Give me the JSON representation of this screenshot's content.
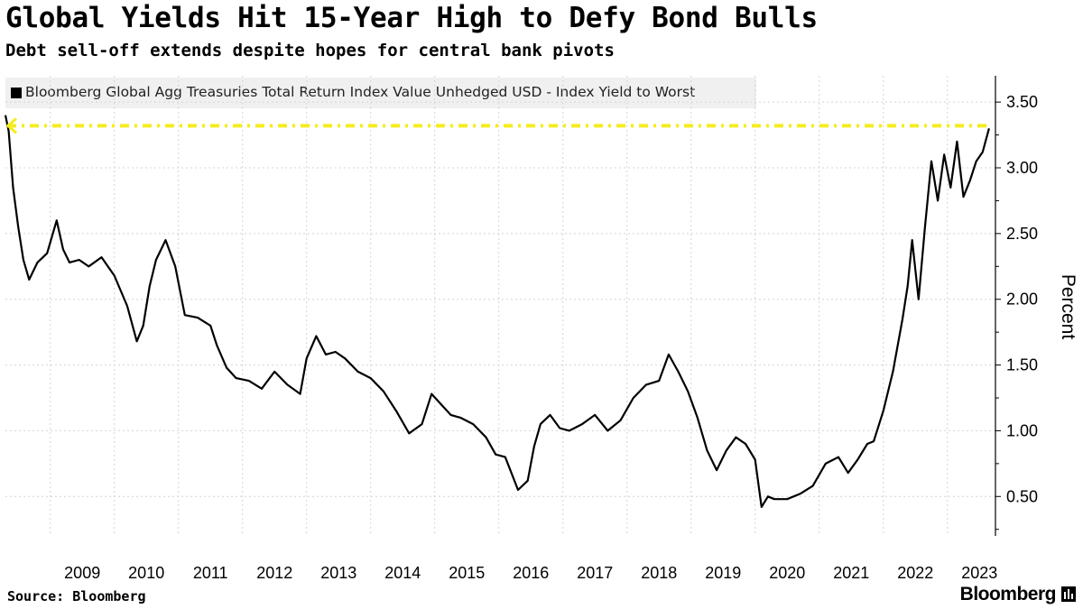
{
  "header": {
    "title": "Global Yields Hit 15-Year High to Defy Bond Bulls",
    "subtitle": "Debt sell-off extends despite hopes for central bank pivots"
  },
  "legend": {
    "label": "Bloomberg Global Agg Treasuries Total Return Index Value Unhedged USD - Index Yield to Worst"
  },
  "footer": {
    "source": "Source: Bloomberg",
    "brand": "Bloomberg"
  },
  "colors": {
    "series": "#000000",
    "reference_line": "#f5ec1e",
    "grid": "#d4d4d4"
  },
  "chart_data": {
    "type": "line",
    "title": "Global Yields Hit 15-Year High to Defy Bond Bulls",
    "subtitle": "Debt sell-off extends despite hopes for central bank pivots",
    "ylabel": "Percent",
    "xlabel": "",
    "x_ticks": [
      "2009",
      "2010",
      "2011",
      "2012",
      "2013",
      "2014",
      "2015",
      "2016",
      "2017",
      "2018",
      "2019",
      "2020",
      "2021",
      "2022",
      "2023"
    ],
    "y_ticks": [
      "0.50",
      "1.00",
      "1.50",
      "2.00",
      "2.50",
      "3.00",
      "3.50"
    ],
    "ylim": [
      0.2,
      3.7
    ],
    "xlim": [
      2008.3,
      2023.75
    ],
    "grid": true,
    "reference_line": {
      "value": 3.32,
      "style": "dashed",
      "color": "#f5ec1e",
      "arrow": "left"
    },
    "series": [
      {
        "name": "Bloomberg Global Agg Treasuries Total Return Index Value Unhedged USD - Index Yield to Worst",
        "x": [
          2008.3,
          2008.35,
          2008.42,
          2008.5,
          2008.58,
          2008.67,
          2008.8,
          2008.95,
          2009.1,
          2009.2,
          2009.3,
          2009.45,
          2009.6,
          2009.8,
          2010.0,
          2010.2,
          2010.35,
          2010.45,
          2010.55,
          2010.65,
          2010.8,
          2010.95,
          2011.1,
          2011.3,
          2011.5,
          2011.6,
          2011.75,
          2011.9,
          2012.1,
          2012.3,
          2012.5,
          2012.7,
          2012.9,
          2013.0,
          2013.15,
          2013.3,
          2013.45,
          2013.6,
          2013.8,
          2014.0,
          2014.2,
          2014.4,
          2014.6,
          2014.8,
          2014.95,
          2015.1,
          2015.25,
          2015.4,
          2015.6,
          2015.8,
          2015.95,
          2016.1,
          2016.3,
          2016.45,
          2016.55,
          2016.65,
          2016.8,
          2016.95,
          2017.1,
          2017.3,
          2017.5,
          2017.7,
          2017.9,
          2018.1,
          2018.3,
          2018.5,
          2018.65,
          2018.8,
          2018.95,
          2019.1,
          2019.25,
          2019.4,
          2019.55,
          2019.7,
          2019.85,
          2020.0,
          2020.1,
          2020.2,
          2020.3,
          2020.5,
          2020.7,
          2020.9,
          2021.1,
          2021.3,
          2021.45,
          2021.6,
          2021.75,
          2021.85,
          2022.0,
          2022.15,
          2022.3,
          2022.38,
          2022.45,
          2022.55,
          2022.65,
          2022.75,
          2022.85,
          2022.95,
          2023.05,
          2023.15,
          2023.25,
          2023.35,
          2023.45,
          2023.55,
          2023.65
        ],
        "y": [
          3.4,
          3.28,
          2.85,
          2.55,
          2.3,
          2.15,
          2.28,
          2.35,
          2.6,
          2.38,
          2.28,
          2.3,
          2.25,
          2.32,
          2.18,
          1.95,
          1.68,
          1.8,
          2.1,
          2.3,
          2.45,
          2.25,
          1.88,
          1.86,
          1.8,
          1.65,
          1.48,
          1.4,
          1.38,
          1.32,
          1.45,
          1.35,
          1.28,
          1.55,
          1.72,
          1.58,
          1.6,
          1.55,
          1.45,
          1.4,
          1.3,
          1.15,
          0.98,
          1.05,
          1.28,
          1.2,
          1.12,
          1.1,
          1.05,
          0.95,
          0.82,
          0.8,
          0.55,
          0.62,
          0.88,
          1.05,
          1.12,
          1.02,
          1.0,
          1.05,
          1.12,
          1.0,
          1.08,
          1.25,
          1.35,
          1.38,
          1.58,
          1.45,
          1.3,
          1.1,
          0.85,
          0.7,
          0.85,
          0.95,
          0.9,
          0.78,
          0.42,
          0.5,
          0.48,
          0.48,
          0.52,
          0.58,
          0.75,
          0.8,
          0.68,
          0.78,
          0.9,
          0.92,
          1.15,
          1.45,
          1.85,
          2.1,
          2.45,
          2.0,
          2.55,
          3.05,
          2.75,
          3.1,
          2.85,
          3.2,
          2.78,
          2.9,
          3.05,
          3.12,
          3.3
        ]
      }
    ]
  }
}
